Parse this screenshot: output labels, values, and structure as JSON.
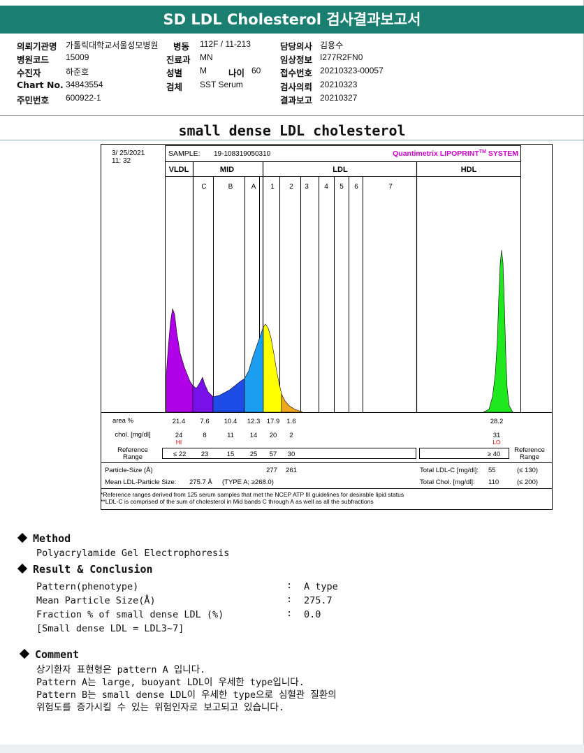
{
  "header": {
    "title": "SD LDL Cholesterol 검사결과보고서"
  },
  "info": {
    "institution_label": "의뢰기관명",
    "institution": "가톨릭대학교서울성모병원",
    "ward_label": "병동",
    "ward": "112F / 11-213",
    "doctor_label": "담당의사",
    "doctor": "김용수",
    "hospital_code_label": "병원코드",
    "hospital_code": "15009",
    "dept_label": "진료과",
    "dept": "MN",
    "clinical_label": "임상정보",
    "clinical": "I277R2FN0",
    "patient_label": "수진자",
    "patient": "하준호",
    "sex_label": "성별",
    "sex": "M",
    "age_label": "나이",
    "age": "60",
    "receipt_label": "접수번호",
    "receipt": "20210323-00057",
    "chart_label": "Chart No.",
    "chart": "34843554",
    "specimen_label": "검체",
    "specimen": "SST Serum",
    "request_label": "검사의뢰",
    "request": "20210323",
    "rrn_label": "주민번호",
    "rrn": "600922-1",
    "report_label": "결과보고",
    "report": "20210327"
  },
  "report_title": "small dense LDL cholesterol",
  "chart_data": {
    "type": "area",
    "date": "3/ 25/2021",
    "time": "11: 32",
    "sample_label": "SAMPLE:",
    "sample_id": "19-108319050310",
    "brand": "Quantimetrix LIPOPRINT",
    "brand_tm": "TM",
    "brand_suffix": " SYSTEM",
    "groups": [
      "VLDL",
      "MID",
      "LDL",
      "HDL"
    ],
    "bands": [
      "C",
      "B",
      "A",
      "1",
      "2",
      "3",
      "4",
      "5",
      "6",
      "7"
    ],
    "area_label": "area %",
    "chol_label": "chol. [mg/dl]",
    "ref_label": "Reference Range",
    "ref_label_right": "Reference Range",
    "fractions": [
      {
        "name": "VLDL",
        "area": "21.4",
        "chol": "24",
        "flag": "HI",
        "ref": "≤ 22",
        "color": "#b000e8"
      },
      {
        "name": "C",
        "area": "7.6",
        "chol": "8",
        "flag": "",
        "ref": "23",
        "color": "#7a10e8"
      },
      {
        "name": "B",
        "area": "10.4",
        "chol": "11",
        "flag": "",
        "ref": "15",
        "color": "#1e4ce6"
      },
      {
        "name": "A",
        "area": "12.3",
        "chol": "14",
        "flag": "",
        "ref": "25",
        "color": "#1b9df0"
      },
      {
        "name": "LDL1",
        "area": "17.9",
        "chol": "20",
        "flag": "",
        "ref": "57",
        "color": "#ffff00"
      },
      {
        "name": "LDL2",
        "area": "1.6",
        "chol": "2",
        "flag": "",
        "ref": "30",
        "color": "#f0a81a"
      },
      {
        "name": "HDL",
        "area": "28.2",
        "chol": "31",
        "flag": "LO",
        "ref": "≥ 40",
        "color": "#1fe81f"
      }
    ],
    "particle_size_label": "Particle-Size (Å)",
    "particle_size_ldl1": "277",
    "particle_size_ldl2": "261",
    "mean_size_label": "Mean LDL-Particle Size:",
    "mean_size_value": "275.7 Å",
    "mean_size_type": "(TYPE A; ≥268.0)",
    "total_ldl_label": "Total LDL-C [mg/dl]:",
    "total_ldl_value": "55",
    "total_ldl_ref": "(≤ 130)",
    "total_chol_label": "Total Chol. [mg/dl]:",
    "total_chol_value": "110",
    "total_chol_ref": "(≤ 200)",
    "footnote1": "*Reference ranges derived from 125 serum samples that met the NCEP ATP III guidelines for desirable lipid status",
    "footnote2": "**LDL-C is comprised of the sum of cholesterol in Mid bands C through A as well as all the subfractions"
  },
  "method": {
    "heading": "Method",
    "text": "Polyacrylamide Gel Electrophoresis"
  },
  "result": {
    "heading": "Result & Conclusion",
    "rows": [
      {
        "label": "Pattern(phenotype)",
        "colon": ":",
        "value": "A type"
      },
      {
        "label": "Mean Particle Size(Å)",
        "colon": ":",
        "value": "275.7"
      },
      {
        "label": "Fraction % of small dense LDL (%)",
        "colon": ":",
        "value": "0.0"
      }
    ],
    "note": "[Small dense LDL = LDL3~7]"
  },
  "comment": {
    "heading": "Comment",
    "lines": [
      "상기환자 표현형은 pattern A 입니다.",
      "Pattern A는 large, buoyant LDL이 우세한 type입니다.",
      "Pattern B는 small dense LDL이 우세한 type으로 심혈관 질환의",
      "위험도를 증가시킬 수 있는 위험인자로 보고되고 있습니다."
    ]
  }
}
